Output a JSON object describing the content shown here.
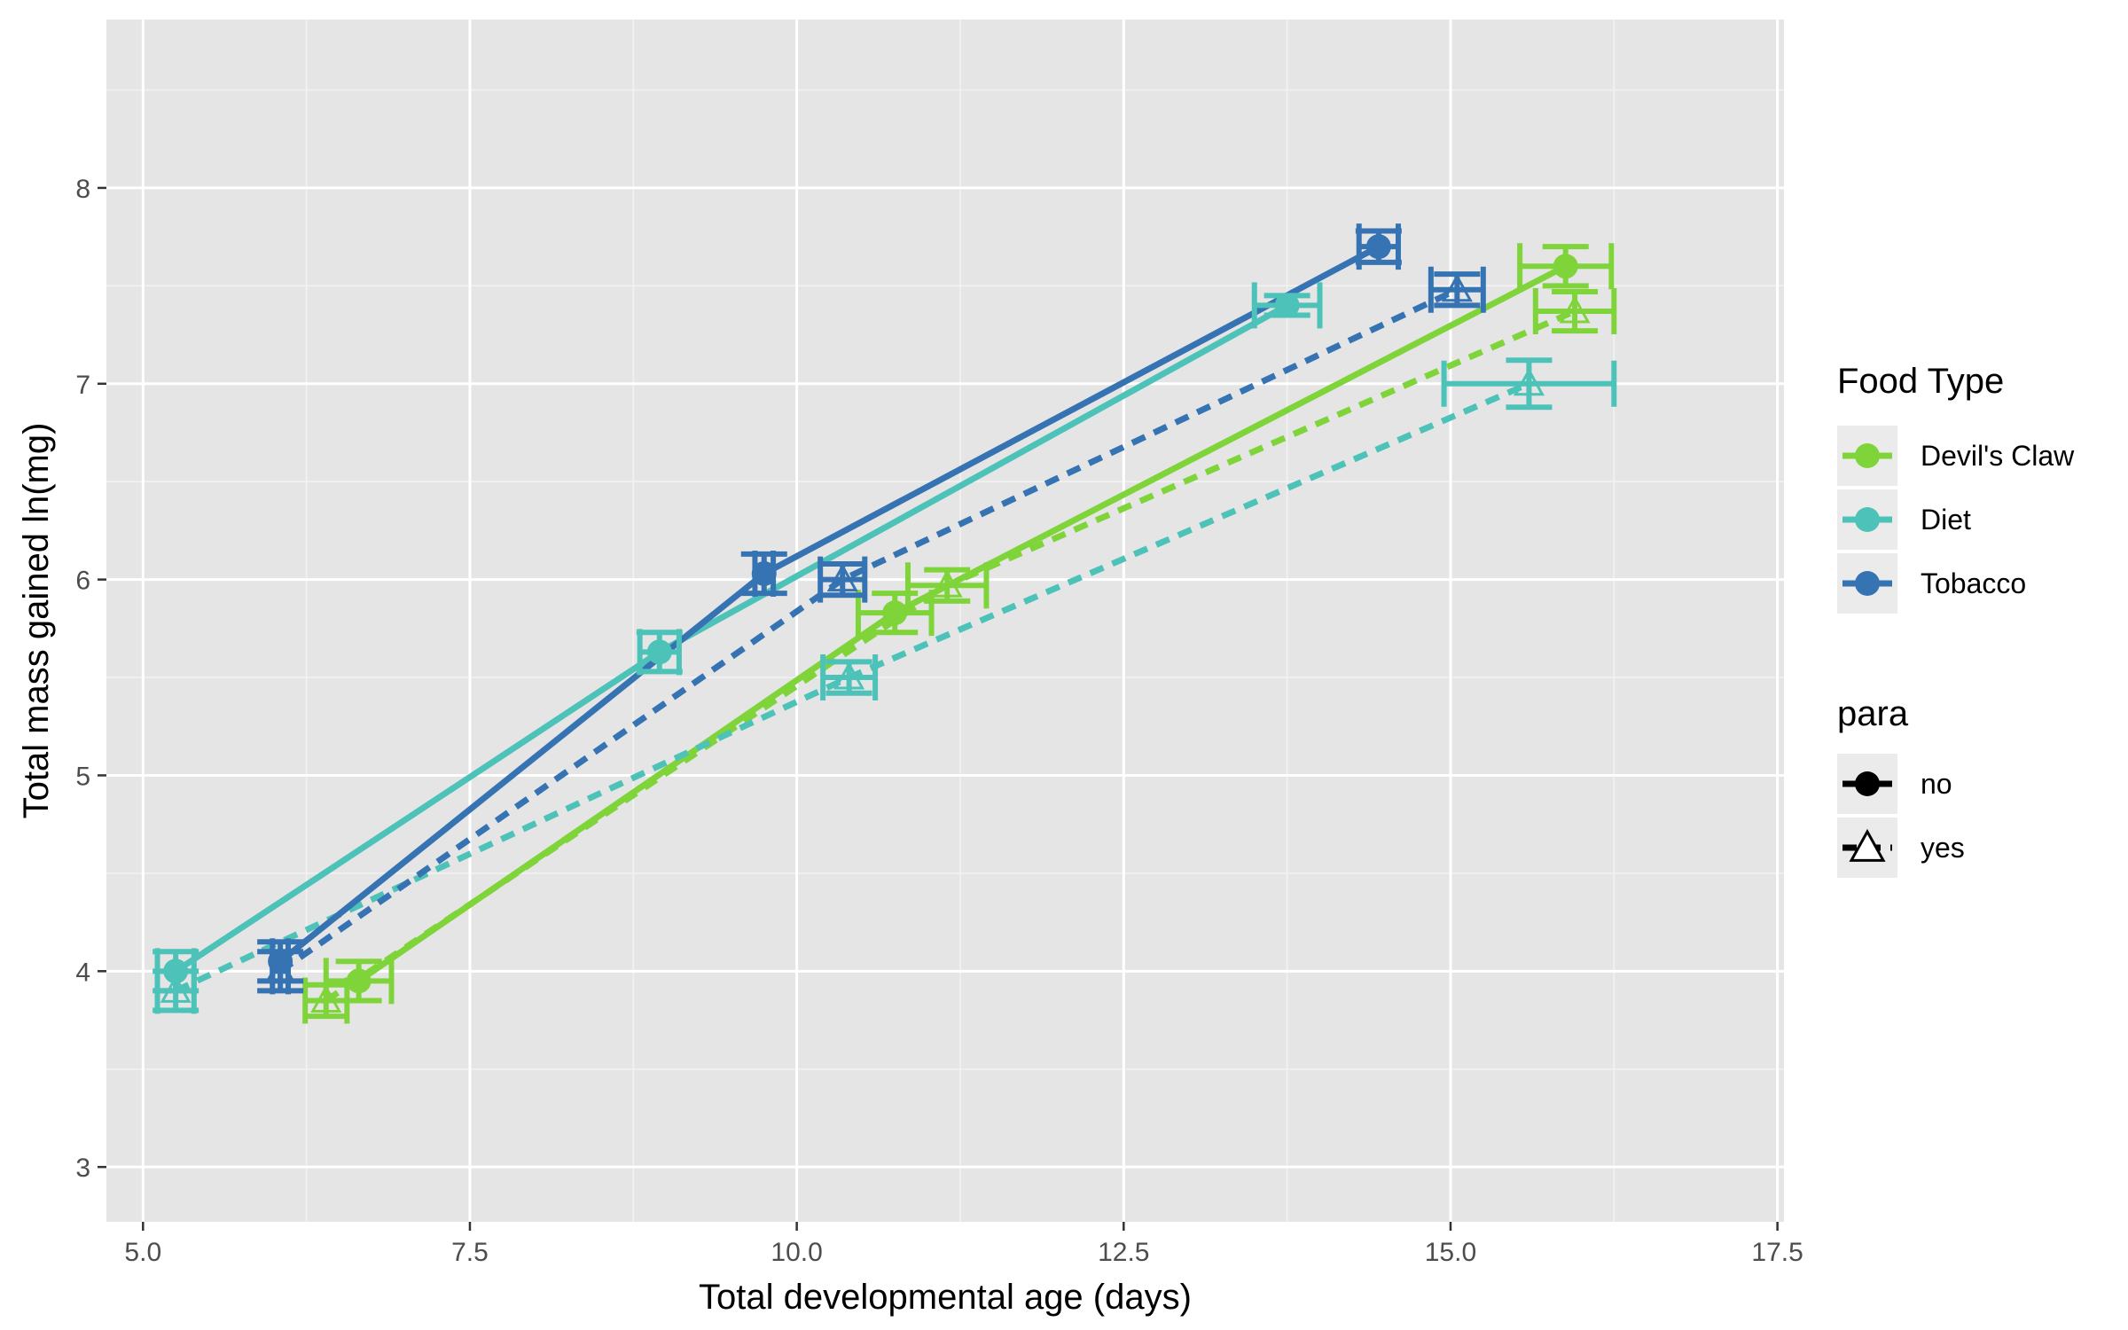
{
  "chart_data": {
    "type": "line",
    "xlabel": "Total developmental age (days)",
    "ylabel": "Total mass gained ln(mg)",
    "xlim": [
      4.72,
      17.55
    ],
    "ylim": [
      2.72,
      8.86
    ],
    "x_ticks": [
      5.0,
      7.5,
      10.0,
      12.5,
      15.0,
      17.5
    ],
    "x_tick_labels": [
      "5.0",
      "7.5",
      "10.0",
      "12.5",
      "15.0",
      "17.5"
    ],
    "y_ticks": [
      3,
      4,
      5,
      6,
      7,
      8
    ],
    "y_tick_labels": [
      "3",
      "4",
      "5",
      "6",
      "7",
      "8"
    ],
    "legend_position": "right",
    "legend_food": {
      "title": "Food Type",
      "entries": [
        {
          "label": "Devil's Claw",
          "color": "#7fd43a"
        },
        {
          "label": "Diet",
          "color": "#4cc2b8"
        },
        {
          "label": "Tobacco",
          "color": "#3673b3"
        }
      ]
    },
    "legend_para": {
      "title": "para",
      "entries": [
        {
          "label": "no",
          "marker": "circle",
          "line": "solid"
        },
        {
          "label": "yes",
          "marker": "triangle",
          "line": "dashed"
        }
      ]
    },
    "series": [
      {
        "name": "Devil's Claw - no",
        "food": "Devil's Claw",
        "para": "no",
        "color": "#7fd43a",
        "dashed": false,
        "marker": "circle",
        "points": [
          {
            "x": 6.65,
            "y": 3.95,
            "xerr": 0.25,
            "yerr": 0.1
          },
          {
            "x": 10.75,
            "y": 5.83,
            "xerr": 0.28,
            "yerr": 0.1
          },
          {
            "x": 15.88,
            "y": 7.6,
            "xerr": 0.35,
            "yerr": 0.1
          }
        ]
      },
      {
        "name": "Devil's Claw - yes",
        "food": "Devil's Claw",
        "para": "yes",
        "color": "#7fd43a",
        "dashed": true,
        "marker": "triangle",
        "points": [
          {
            "x": 6.4,
            "y": 3.85,
            "xerr": 0.16,
            "yerr": 0.08
          },
          {
            "x": 11.15,
            "y": 5.97,
            "xerr": 0.3,
            "yerr": 0.08
          },
          {
            "x": 15.95,
            "y": 7.37,
            "xerr": 0.3,
            "yerr": 0.1
          }
        ]
      },
      {
        "name": "Diet - no",
        "food": "Diet",
        "para": "no",
        "color": "#4cc2b8",
        "dashed": false,
        "marker": "circle",
        "points": [
          {
            "x": 5.25,
            "y": 4.0,
            "xerr": 0.14,
            "yerr": 0.1
          },
          {
            "x": 8.95,
            "y": 5.63,
            "xerr": 0.15,
            "yerr": 0.1
          },
          {
            "x": 13.75,
            "y": 7.4,
            "xerr": 0.25,
            "yerr": 0.05
          }
        ]
      },
      {
        "name": "Diet - yes",
        "food": "Diet",
        "para": "yes",
        "color": "#4cc2b8",
        "dashed": true,
        "marker": "triangle",
        "points": [
          {
            "x": 5.25,
            "y": 3.9,
            "xerr": 0.14,
            "yerr": 0.1
          },
          {
            "x": 10.4,
            "y": 5.5,
            "xerr": 0.2,
            "yerr": 0.08
          },
          {
            "x": 15.6,
            "y": 7.0,
            "xerr": 0.65,
            "yerr": 0.12
          }
        ]
      },
      {
        "name": "Tobacco - no",
        "food": "Tobacco",
        "para": "no",
        "color": "#3673b3",
        "dashed": false,
        "marker": "circle",
        "points": [
          {
            "x": 6.05,
            "y": 4.05,
            "xerr": 0.06,
            "yerr": 0.1
          },
          {
            "x": 9.75,
            "y": 6.03,
            "xerr": 0.07,
            "yerr": 0.1
          },
          {
            "x": 14.45,
            "y": 7.7,
            "xerr": 0.15,
            "yerr": 0.08
          }
        ]
      },
      {
        "name": "Tobacco - yes",
        "food": "Tobacco",
        "para": "yes",
        "color": "#3673b3",
        "dashed": true,
        "marker": "triangle",
        "points": [
          {
            "x": 6.05,
            "y": 4.0,
            "xerr": 0.06,
            "yerr": 0.1
          },
          {
            "x": 10.35,
            "y": 6.0,
            "xerr": 0.17,
            "yerr": 0.08
          },
          {
            "x": 15.05,
            "y": 7.48,
            "xerr": 0.2,
            "yerr": 0.08
          }
        ]
      }
    ]
  }
}
